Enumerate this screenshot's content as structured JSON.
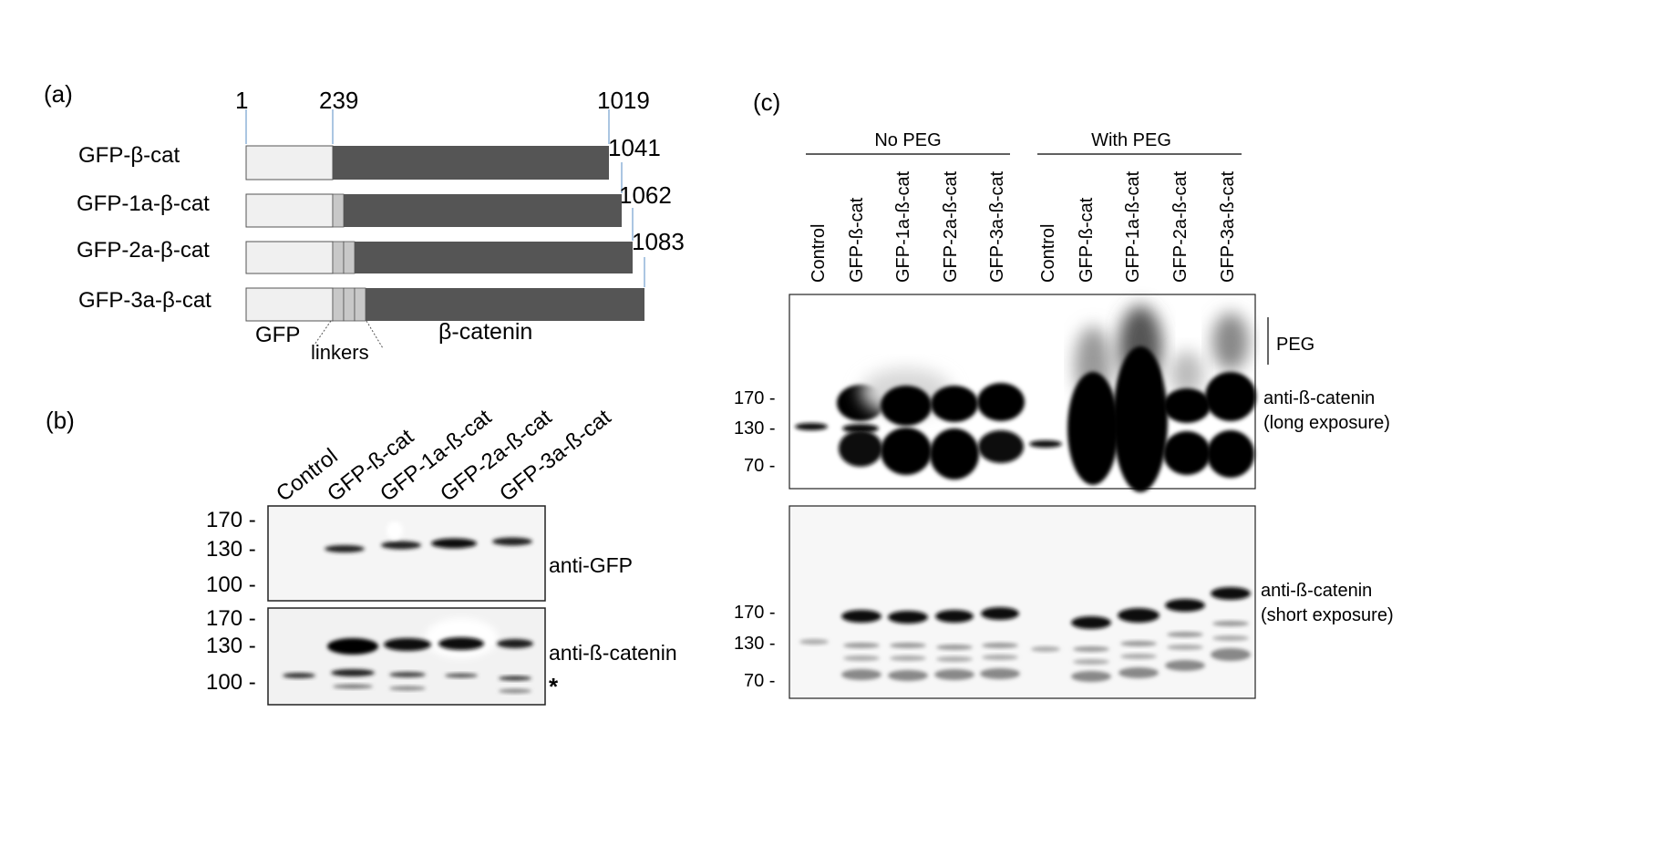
{
  "panel_a": {
    "label": "(a)",
    "positions": {
      "start": "1",
      "gfp_end": "239",
      "end_wt": "1019",
      "end_1a": "1041",
      "end_2a": "1062",
      "end_3a": "1083"
    },
    "constructs": [
      {
        "name": "GFP-β-cat",
        "linkers": 0
      },
      {
        "name": "GFP-1a-β-cat",
        "linkers": 1
      },
      {
        "name": "GFP-2a-β-cat",
        "linkers": 2
      },
      {
        "name": "GFP-3a-β-cat",
        "linkers": 3
      }
    ],
    "legend": {
      "gfp": "GFP",
      "linkers": "linkers",
      "bcat": "β-catenin"
    },
    "colors": {
      "gfp": "#f0f0f0",
      "linker": "#c8c8c8",
      "bcat": "#555555",
      "tick": "#8fb3d9"
    }
  },
  "panel_b": {
    "label": "(b)",
    "lanes": [
      "Control",
      "GFP-ß-cat",
      "GFP-1a-ß-cat",
      "GFP-2a-ß-cat",
      "GFP-3a-ß-cat"
    ],
    "blot1": {
      "markers": [
        "170 -",
        "130 -",
        "100 -"
      ],
      "antibody": "anti-GFP"
    },
    "blot2": {
      "markers": [
        "170 -",
        "130 -",
        "100 -"
      ],
      "antibody": "anti-ß-catenin",
      "note": "*"
    }
  },
  "panel_c": {
    "label": "(c)",
    "groups": {
      "no_peg": "No PEG",
      "with_peg": "With PEG"
    },
    "lanes": [
      "Control",
      "GFP-ß-cat",
      "GFP-1a-ß-cat",
      "GFP-2a-ß-cat",
      "GFP-3a-ß-cat",
      "Control",
      "GFP-ß-cat",
      "GFP-1a-ß-cat",
      "GFP-2a-ß-cat",
      "GFP-3a-ß-cat"
    ],
    "blot1": {
      "markers": [
        "170 -",
        "130 -",
        "70 -"
      ],
      "bracket_label": "PEG",
      "antibody_line1": "anti-ß-catenin",
      "antibody_line2": "(long exposure)"
    },
    "blot2": {
      "markers": [
        "170 -",
        "130 -",
        "70 -"
      ],
      "antibody_line1": "anti-ß-catenin",
      "antibody_line2": "(short exposure)"
    }
  }
}
